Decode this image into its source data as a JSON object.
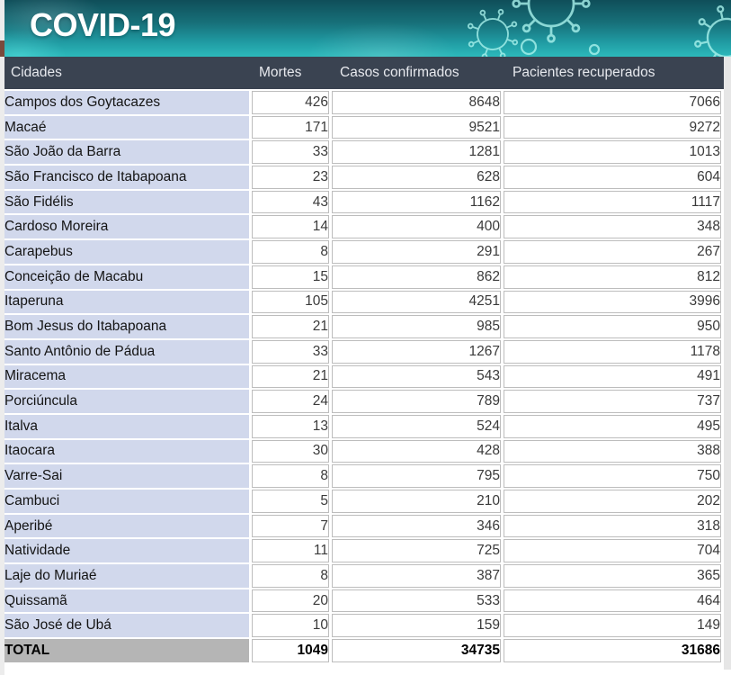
{
  "chart_data": {
    "type": "table",
    "title": "COVID-19",
    "columns": [
      "Cidades",
      "Mortes",
      "Casos confirmados",
      "Pacientes recuperados"
    ],
    "rows": [
      [
        "Campos dos Goytacazes",
        426,
        8648,
        7066
      ],
      [
        "Macaé",
        171,
        9521,
        9272
      ],
      [
        "São João da Barra",
        33,
        1281,
        1013
      ],
      [
        "São Francisco de Itabapoana",
        23,
        628,
        604
      ],
      [
        "São Fidélis",
        43,
        1162,
        1117
      ],
      [
        "Cardoso Moreira",
        14,
        400,
        348
      ],
      [
        "Carapebus",
        8,
        291,
        267
      ],
      [
        "Conceição de Macabu",
        15,
        862,
        812
      ],
      [
        "Itaperuna",
        105,
        4251,
        3996
      ],
      [
        "Bom Jesus do Itabapoana",
        21,
        985,
        950
      ],
      [
        "Santo Antônio de Pádua",
        33,
        1267,
        1178
      ],
      [
        "Miracema",
        21,
        543,
        491
      ],
      [
        "Porciúncula",
        24,
        789,
        737
      ],
      [
        "Italva",
        13,
        524,
        495
      ],
      [
        "Itaocara",
        30,
        428,
        388
      ],
      [
        "Varre-Sai",
        8,
        795,
        750
      ],
      [
        "Cambuci",
        5,
        210,
        202
      ],
      [
        "Aperibé",
        7,
        346,
        318
      ],
      [
        "Natividade",
        11,
        725,
        704
      ],
      [
        "Laje do Muriaé",
        8,
        387,
        365
      ],
      [
        "Quissamã",
        20,
        533,
        464
      ],
      [
        "São José de Ubá",
        10,
        159,
        149
      ]
    ],
    "total_row": [
      "TOTAL",
      1049,
      34735,
      31686
    ],
    "layout": {
      "grid": true,
      "legend": "none"
    }
  },
  "colors": {
    "banner_top": "#0f4e59",
    "banner_bottom": "#2cb9bb",
    "virus_outline": "#a9f2ec",
    "header_bg": "#3a4351",
    "header_text": "#e7e9ee",
    "city_cell_bg": "#d1d8ec",
    "total_cell_bg": "#b5b5b5",
    "cell_border": "#bdbdbd"
  }
}
